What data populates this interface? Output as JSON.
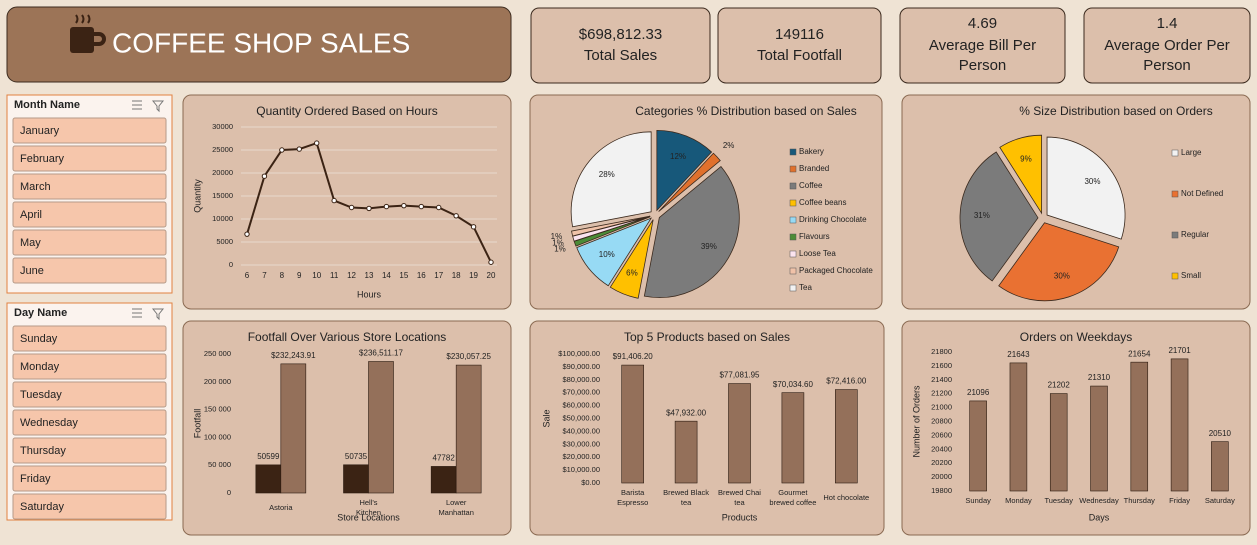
{
  "header": {
    "title": "COFFEE SHOP SALES"
  },
  "kpis": [
    {
      "value": "$698,812.33",
      "label": "Total Sales"
    },
    {
      "value": "149116",
      "label": "Total Footfall"
    },
    {
      "value": "4.69",
      "label": "Average Bill Per Person"
    },
    {
      "value": "1.4",
      "label": "Average Order Per Person"
    }
  ],
  "slicers": [
    {
      "title": "Month Name",
      "items": [
        "January",
        "February",
        "March",
        "April",
        "May",
        "June"
      ]
    },
    {
      "title": "Day Name",
      "items": [
        "Sunday",
        "Monday",
        "Tuesday",
        "Wednesday",
        "Thursday",
        "Friday",
        "Saturday"
      ]
    }
  ],
  "chart_data": [
    {
      "type": "line",
      "title": "Quantity Ordered Based on Hours",
      "xlabel": "Hours",
      "ylabel": "Quantity",
      "color": "#3b2314",
      "grid": true,
      "x": [
        6,
        7,
        8,
        9,
        10,
        11,
        12,
        13,
        14,
        15,
        16,
        17,
        18,
        19,
        20
      ],
      "values": [
        6700,
        19300,
        25000,
        25200,
        26500,
        14000,
        12500,
        12300,
        12700,
        12900,
        12700,
        12500,
        10700,
        8300,
        600
      ],
      "xlim": [
        6,
        20
      ],
      "xticks": [
        6,
        7,
        8,
        9,
        10,
        11,
        12,
        13,
        14,
        15,
        16,
        17,
        18,
        19,
        20
      ],
      "ylim": [
        0,
        30000
      ],
      "yticks": [
        0,
        {
          "value": 5000,
          "label": "5000"
        },
        {
          "value": 10000,
          "label": "10000"
        },
        {
          "value": 15000,
          "label": "15000"
        },
        {
          "value": 20000,
          "label": "20000"
        },
        {
          "value": 25000,
          "label": "25000"
        },
        {
          "value": 30000,
          "label": "30000"
        }
      ]
    },
    {
      "type": "pie",
      "title": "Categories % Distribution based on Sales",
      "categories": [
        "Bakery",
        "Branded",
        "Coffee",
        "Coffee beans",
        "Drinking Chocolate",
        "Flavours",
        "Loose Tea",
        "Packaged Chocolate",
        "Tea"
      ],
      "values": [
        12,
        2,
        39,
        6,
        10,
        1,
        1,
        1,
        28
      ],
      "value_labels": [
        "12%",
        "2%",
        "39%",
        "6%",
        "10%",
        "1%",
        "1%",
        "1%",
        "28%"
      ],
      "colors": [
        "#17587a",
        "#e0702c",
        "#7b7b7b",
        "#ffc000",
        "#97daf4",
        "#4c8c37",
        "#fbe3ee",
        "#f0c2a8",
        "#f2f2f2"
      ]
    },
    {
      "type": "pie",
      "title": "% Size Distribution based on Orders",
      "categories": [
        "Large",
        "Not Defined",
        "Regular",
        "Small"
      ],
      "values": [
        30,
        30,
        31,
        9
      ],
      "value_labels": [
        "30%",
        "30%",
        "31%",
        "9%"
      ],
      "colors": [
        "#f2f2f2",
        "#e97132",
        "#7b7b7b",
        "#ffc000"
      ]
    },
    {
      "type": "bar",
      "title": "Footfall Over Various Store Locations",
      "xlabel": "Store Locations",
      "ylabel": "Footfall",
      "categories": [
        "Astoria",
        "Hell's Kitchen",
        "Lower Manhattan"
      ],
      "series": [
        {
          "color": "#3b2314",
          "values": [
            50599,
            50735,
            47782
          ]
        },
        {
          "color": "#94705a",
          "values": [
            232243.91,
            236511.17,
            230057.25
          ],
          "value_labels": [
            "$232,243.91",
            "$236,511.17",
            "$230,057.25"
          ]
        }
      ],
      "ylim": [
        0,
        250000
      ],
      "yticks": [
        0,
        {
          "value": 50000,
          "label": "50 000"
        },
        {
          "value": 100000,
          "label": "100 000"
        },
        {
          "value": 150000,
          "label": "150 000"
        },
        {
          "value": 200000,
          "label": "200 000"
        },
        {
          "value": 250000,
          "label": "250 000"
        }
      ]
    },
    {
      "type": "bar",
      "title": "Top 5 Products based on Sales",
      "xlabel": "Products",
      "ylabel": "Sale",
      "categories": [
        "Barista Espresso",
        "Brewed Black tea",
        "Brewed Chai tea",
        "Gourmet brewed coffee",
        "Hot chocolate"
      ],
      "series": [
        {
          "color": "#94705a",
          "values": [
            91406.2,
            47932.0,
            77081.95,
            70034.6,
            72416.0
          ],
          "value_labels": [
            "$91,406.20",
            "$47,932.00",
            "$77,081.95",
            "$70,034.60",
            "$72,416.00"
          ]
        }
      ],
      "ylim": [
        0,
        100000
      ],
      "yticks": [
        {
          "value": 0,
          "label": "$0.00"
        },
        {
          "value": 10000,
          "label": "$10,000.00"
        },
        {
          "value": 20000,
          "label": "$20,000.00"
        },
        {
          "value": 30000,
          "label": "$30,000.00"
        },
        {
          "value": 40000,
          "label": "$40,000.00"
        },
        {
          "value": 50000,
          "label": "$50,000.00"
        },
        {
          "value": 60000,
          "label": "$60,000.00"
        },
        {
          "value": 70000,
          "label": "$70,000.00"
        },
        {
          "value": 80000,
          "label": "$80,000.00"
        },
        {
          "value": 90000,
          "label": "$90,000.00"
        },
        {
          "value": 100000,
          "label": "$100,000.00"
        }
      ]
    },
    {
      "type": "bar",
      "title": "Orders on Weekdays",
      "xlabel": "Days",
      "ylabel": "Number of Orders",
      "categories": [
        "Sunday",
        "Monday",
        "Tuesday",
        "Wednesday",
        "Thursday",
        "Friday",
        "Saturday"
      ],
      "series": [
        {
          "color": "#94705a",
          "values": [
            21096,
            21643,
            21202,
            21310,
            21654,
            21701,
            20510
          ],
          "labeled": true
        }
      ],
      "ylim": [
        19800,
        21800
      ],
      "yticks": [
        19800,
        20000,
        20200,
        20400,
        20600,
        20800,
        21000,
        21200,
        21400,
        21600,
        21800
      ]
    }
  ]
}
